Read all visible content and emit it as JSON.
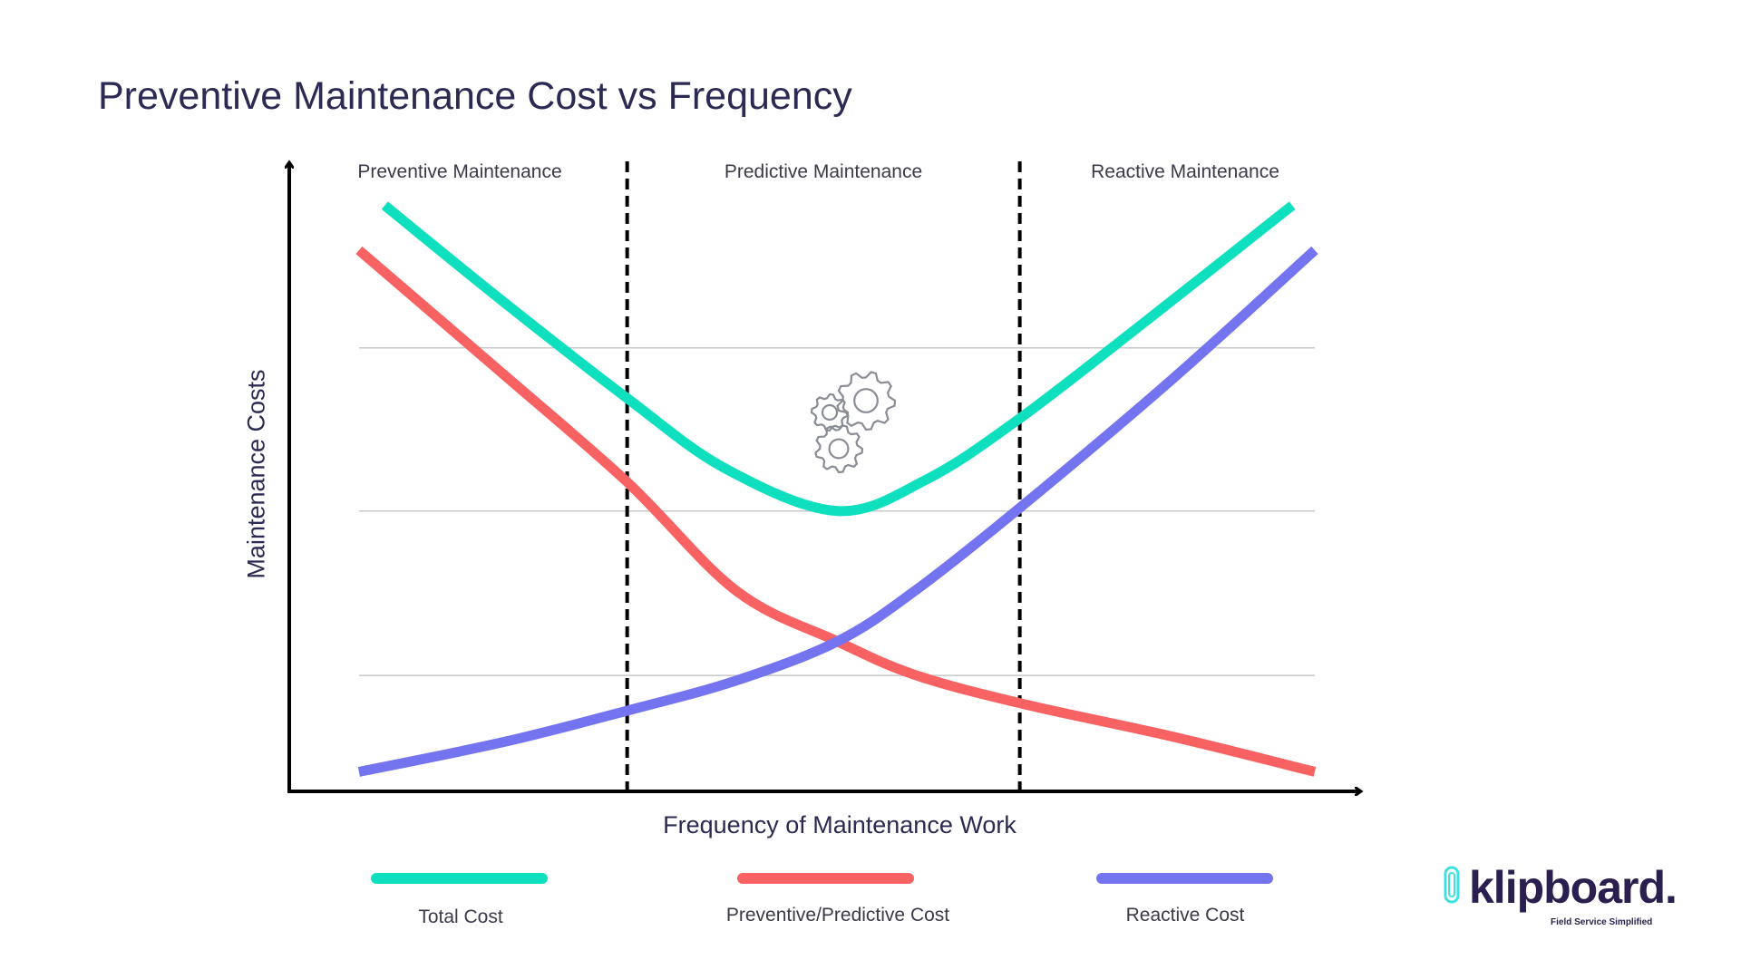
{
  "title": "Preventive Maintenance Cost vs Frequency",
  "chart_data": {
    "type": "line",
    "title": "Preventive Maintenance Cost vs Frequency",
    "xlabel": "Frequency of Maintenance Work",
    "ylabel": "Maintenance Costs",
    "xlim": [
      0,
      100
    ],
    "ylim": [
      0,
      100
    ],
    "grid": true,
    "gridlines_y": [
      18.4,
      44.5,
      70.4
    ],
    "region_boundaries_x": [
      31.5,
      68.1
    ],
    "regions": [
      "Preventive Maintenance",
      "Predictive Maintenance",
      "Reactive Maintenance"
    ],
    "legend_position": "bottom",
    "series": [
      {
        "name": "Total Cost",
        "color": "#0ee0bf",
        "x": [
          8.9,
          19.9,
          31.5,
          40.7,
          51.1,
          59.4,
          68.1,
          80.2,
          93.5
        ],
        "y": [
          93.0,
          77.8,
          62.4,
          51.2,
          44.5,
          49.5,
          59.2,
          75.1,
          93.0
        ]
      },
      {
        "name": "Preventive/Predictive Cost",
        "color": "#f96262",
        "x": [
          6.5,
          19.9,
          31.5,
          41.7,
          51.1,
          58.3,
          68.1,
          82.3,
          95.6
        ],
        "y": [
          85.9,
          66.3,
          49.1,
          31.8,
          23.8,
          18.5,
          14.0,
          8.7,
          3.1
        ]
      },
      {
        "name": "Reactive Cost",
        "color": "#7474f0",
        "x": [
          6.5,
          19.9,
          31.5,
          41.7,
          51.1,
          58.3,
          68.1,
          82.3,
          95.6
        ],
        "y": [
          3.1,
          7.8,
          12.8,
          17.6,
          23.8,
          31.8,
          45.0,
          65.4,
          85.9
        ]
      }
    ]
  },
  "icons": {
    "center": "gears-icon"
  },
  "logo": {
    "wordmark": "klipboard.",
    "tagline": "Field Service Simplified",
    "accent": "#3fe0e0"
  }
}
